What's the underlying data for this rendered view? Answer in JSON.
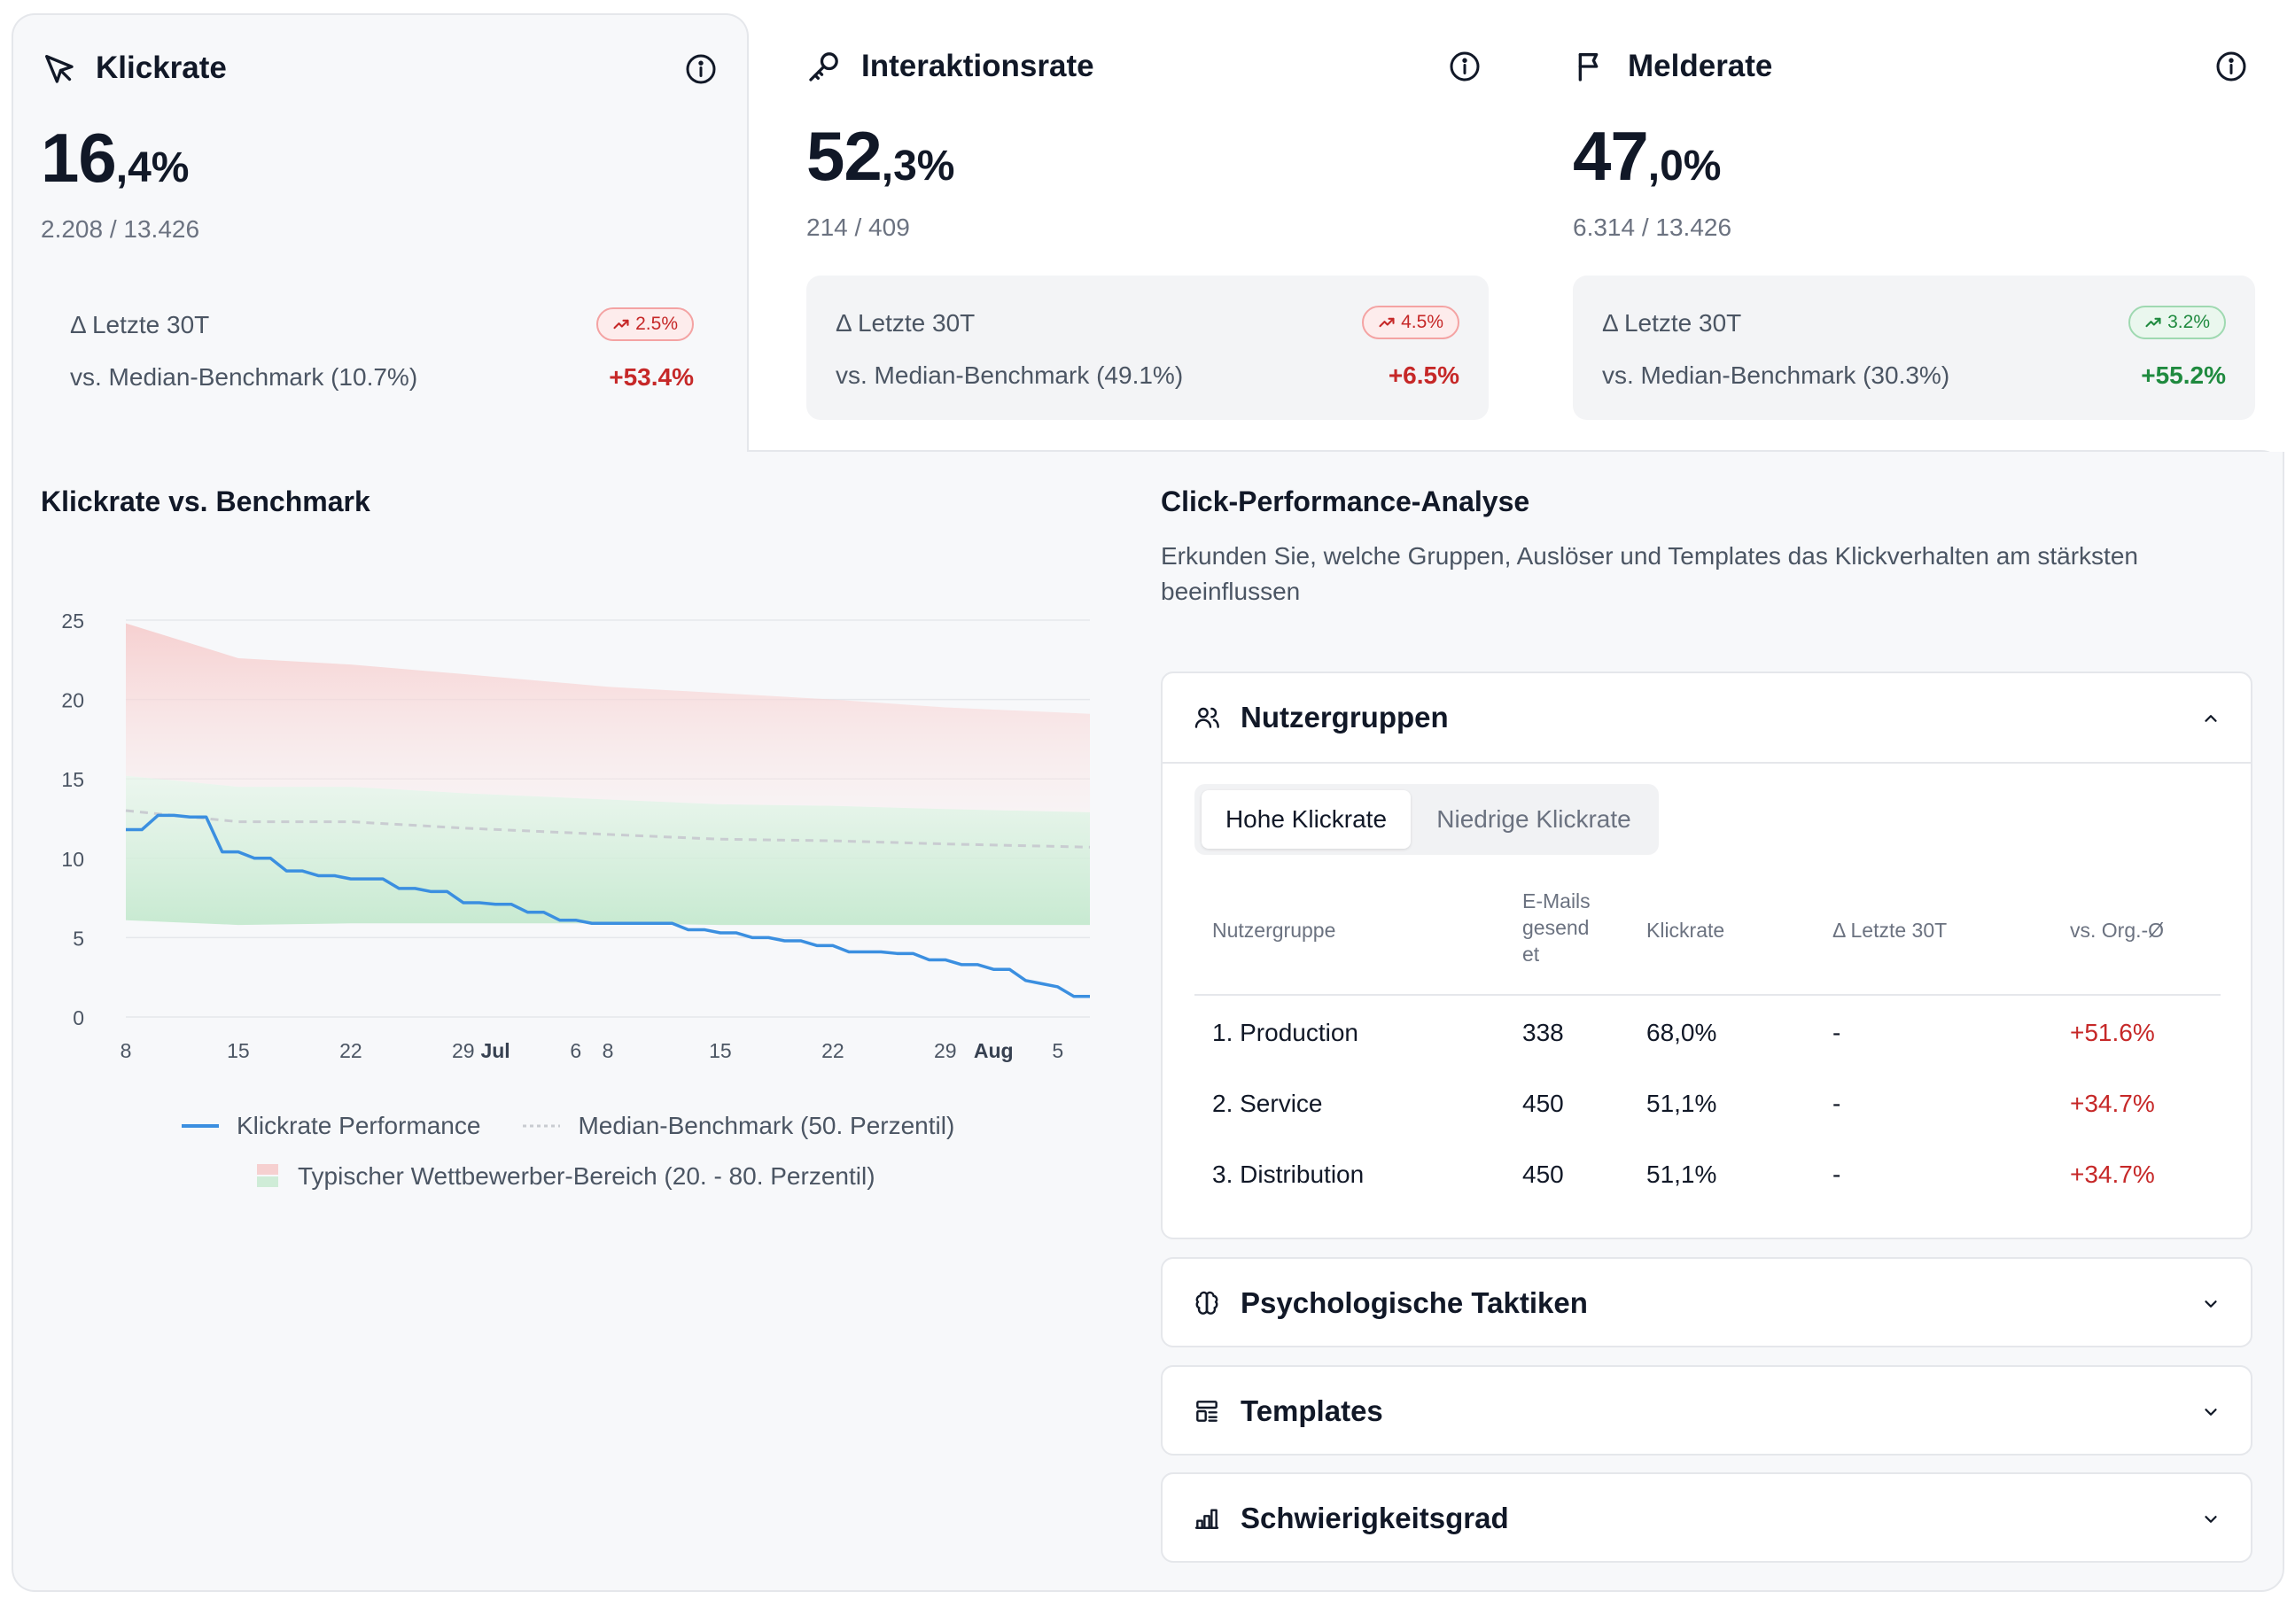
{
  "kpis": [
    {
      "title": "Klickrate",
      "icon": "cursor-icon",
      "value_int": "16",
      "value_dec": ",4%",
      "sub": "2.208 / 13.426",
      "last30_label": "Δ Letzte 30T",
      "trend": "2.5%",
      "trend_color": "red",
      "bench_label": "vs. Median-Benchmark (10.7%)",
      "bench_delta": "+53.4%"
    },
    {
      "title": "Interaktionsrate",
      "icon": "key-icon",
      "value_int": "52",
      "value_dec": ",3%",
      "sub": "214 / 409",
      "last30_label": "Δ Letzte 30T",
      "trend": "4.5%",
      "trend_color": "red",
      "bench_label": "vs. Median-Benchmark (49.1%)",
      "bench_delta": "+6.5%"
    },
    {
      "title": "Melderate",
      "icon": "flag-icon",
      "value_int": "47",
      "value_dec": ",0%",
      "sub": "6.314 / 13.426",
      "last30_label": "Δ Letzte 30T",
      "trend": "3.2%",
      "trend_color": "green",
      "bench_label": "vs. Median-Benchmark (30.3%)",
      "bench_delta": "+55.2%"
    }
  ],
  "chart_section": {
    "title": "Klickrate vs. Benchmark",
    "legend": {
      "performance": "Klickrate Performance",
      "median": "Median-Benchmark (50. Perzentil)",
      "range": "Typischer Wettbewerber-Bereich (20. - 80. Perzentil)"
    }
  },
  "chart_data": {
    "type": "line",
    "yticks": [
      0,
      5,
      10,
      15,
      20,
      25
    ],
    "ylim": [
      0,
      25
    ],
    "xlim": [
      0,
      60
    ],
    "xticks": [
      {
        "x": 0,
        "label": "8",
        "bold": false
      },
      {
        "x": 7,
        "label": "15",
        "bold": false
      },
      {
        "x": 14,
        "label": "22",
        "bold": false
      },
      {
        "x": 21,
        "label": "29",
        "bold": false
      },
      {
        "x": 23,
        "label": "Jul",
        "bold": true
      },
      {
        "x": 28,
        "label": "6",
        "bold": false
      },
      {
        "x": 30,
        "label": "8",
        "bold": false
      },
      {
        "x": 37,
        "label": "15",
        "bold": false
      },
      {
        "x": 44,
        "label": "22",
        "bold": false
      },
      {
        "x": 51,
        "label": "29",
        "bold": false
      },
      {
        "x": 54,
        "label": "Aug",
        "bold": true
      },
      {
        "x": 58,
        "label": "5",
        "bold": false
      }
    ],
    "series": [
      {
        "name": "Klickrate Performance",
        "color": "#3b8fe0",
        "x": [
          0,
          1,
          2,
          3,
          4,
          5,
          6,
          7,
          8,
          9,
          10,
          11,
          12,
          13,
          14,
          15,
          16,
          17,
          18,
          19,
          20,
          21,
          22,
          23,
          24,
          25,
          26,
          27,
          28,
          29,
          30,
          31,
          32,
          33,
          34,
          35,
          36,
          37,
          38,
          39,
          40,
          41,
          42,
          43,
          44,
          45,
          46,
          47,
          48,
          49,
          50,
          51,
          52,
          53,
          54,
          55,
          56,
          57,
          58,
          59,
          60
        ],
        "y": [
          11.8,
          11.8,
          12.7,
          12.7,
          12.6,
          12.6,
          10.4,
          10.4,
          10.0,
          10.0,
          9.2,
          9.2,
          8.9,
          8.9,
          8.7,
          8.7,
          8.7,
          8.1,
          8.1,
          7.9,
          7.9,
          7.2,
          7.2,
          7.1,
          7.1,
          6.6,
          6.6,
          6.1,
          6.1,
          5.9,
          5.9,
          5.9,
          5.9,
          5.9,
          5.9,
          5.5,
          5.5,
          5.3,
          5.3,
          5.0,
          5.0,
          4.8,
          4.8,
          4.5,
          4.5,
          4.1,
          4.1,
          4.1,
          4.0,
          4.0,
          3.6,
          3.6,
          3.3,
          3.3,
          3.0,
          3.0,
          2.3,
          2.1,
          1.9,
          1.3,
          1.3
        ]
      },
      {
        "name": "Median-Benchmark (50. Perzentil)",
        "color": "#c9ccd1",
        "x": [
          0,
          7,
          14,
          21,
          30,
          37,
          44,
          51,
          60
        ],
        "y": [
          13.0,
          12.3,
          12.3,
          11.9,
          11.5,
          11.2,
          11.1,
          10.9,
          10.7
        ]
      }
    ],
    "band_upper": {
      "x": [
        0,
        7,
        14,
        21,
        30,
        37,
        44,
        51,
        60
      ],
      "y": [
        24.8,
        22.6,
        22.2,
        21.6,
        20.8,
        20.4,
        20.0,
        19.5,
        19.1
      ]
    },
    "band_lower": {
      "x": [
        0,
        7,
        14,
        21,
        30,
        37,
        44,
        51,
        60
      ],
      "y": [
        6.1,
        5.8,
        5.9,
        5.9,
        5.9,
        5.8,
        5.8,
        5.8,
        5.8
      ]
    }
  },
  "analysis": {
    "title": "Click-Performance-Analyse",
    "description": "Erkunden Sie, welche Gruppen, Auslöser und Templates das Klickverhalten am stärksten beeinflussen",
    "groups": {
      "title": "Nutzergruppen",
      "icon": "users-icon",
      "tabs": [
        "Hohe Klickrate",
        "Niedrige Klickrate"
      ],
      "columns": [
        "Nutzergruppe",
        "E-Mails\ngesend\net",
        "Klickrate",
        "Δ Letzte 30T",
        "vs. Org.-Ø"
      ],
      "rows": [
        {
          "name": "1. Production",
          "emails": "338",
          "rate": "68,0%",
          "last30": "-",
          "vs_org": "+51.6%"
        },
        {
          "name": "2. Service",
          "emails": "450",
          "rate": "51,1%",
          "last30": "-",
          "vs_org": "+34.7%"
        },
        {
          "name": "3. Distribution",
          "emails": "450",
          "rate": "51,1%",
          "last30": "-",
          "vs_org": "+34.7%"
        }
      ]
    },
    "collapsed": [
      {
        "title": "Psychologische Taktiken",
        "icon": "brain-icon"
      },
      {
        "title": "Templates",
        "icon": "template-icon"
      },
      {
        "title": "Schwierigkeitsgrad",
        "icon": "bar-chart-icon"
      }
    ]
  }
}
